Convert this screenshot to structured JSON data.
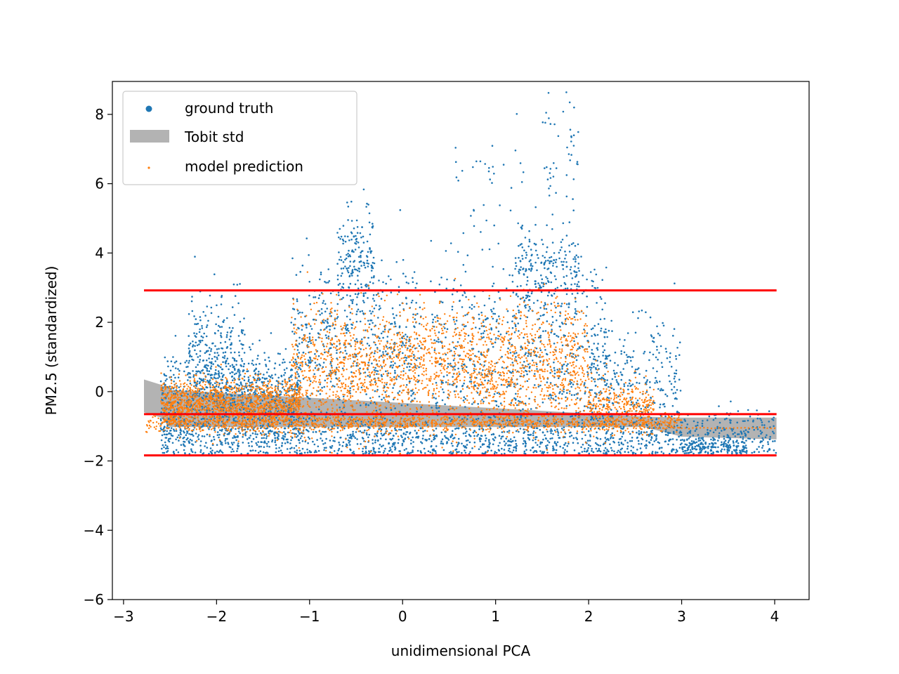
{
  "chart_data": {
    "type": "scatter",
    "title": "",
    "xlabel": "unidimensional PCA",
    "ylabel": "PM2.5 (standardized)",
    "xlim": [
      -3.12,
      4.37
    ],
    "ylim": [
      -6.0,
      8.95
    ],
    "x_ticks": [
      -3,
      -2,
      -1,
      0,
      1,
      2,
      3,
      4
    ],
    "x_tick_labels": [
      "−3",
      "−2",
      "−1",
      "0",
      "1",
      "2",
      "3",
      "4"
    ],
    "y_ticks": [
      -6,
      -4,
      -2,
      0,
      2,
      4,
      6,
      8
    ],
    "y_tick_labels": [
      "−6",
      "−4",
      "−2",
      "0",
      "2",
      "4",
      "6",
      "8"
    ],
    "grid": false,
    "legend_position": "top-left",
    "legend": [
      {
        "label": "ground truth",
        "kind": "marker",
        "color": "#1f77b4"
      },
      {
        "label": "Tobit std",
        "kind": "patch",
        "color": "#b3b3b3"
      },
      {
        "label": "model prediction",
        "kind": "marker",
        "color": "#ff7f0e"
      }
    ],
    "series": [
      {
        "name": "ground truth",
        "color": "#1f77b4",
        "point_count_approx": 9000,
        "x_range": [
          -2.6,
          4.02
        ],
        "clusters": [
          {
            "x": [
              -2.6,
              4.02
            ],
            "y_mean": -1.3,
            "y_sd": 0.35,
            "weight": 0.28
          },
          {
            "x": [
              -2.6,
              -1.1
            ],
            "y_mean": -0.2,
            "y_sd": 0.7,
            "weight": 0.18
          },
          {
            "x": [
              -2.3,
              -1.7
            ],
            "y_mean": 1.0,
            "y_sd": 0.9,
            "weight": 0.05
          },
          {
            "x": [
              -1.2,
              0.2
            ],
            "y_mean": 1.2,
            "y_sd": 1.3,
            "weight": 0.12
          },
          {
            "x": [
              -0.7,
              -0.3
            ],
            "y_mean": 3.8,
            "y_sd": 0.7,
            "weight": 0.03
          },
          {
            "x": [
              0.3,
              2.2
            ],
            "y_mean": 1.0,
            "y_sd": 1.4,
            "weight": 0.14
          },
          {
            "x": [
              1.2,
              1.9
            ],
            "y_mean": 3.5,
            "y_sd": 0.6,
            "weight": 0.04
          },
          {
            "x": [
              1.5,
              1.9
            ],
            "y_mean": 6.5,
            "y_sd": 1.3,
            "weight": 0.01
          },
          {
            "x": [
              0.5,
              1.3
            ],
            "y_mean": 5.8,
            "y_sd": 0.9,
            "weight": 0.007
          },
          {
            "x": [
              2.0,
              3.0
            ],
            "y_mean": 0.2,
            "y_sd": 1.0,
            "weight": 0.06
          },
          {
            "x": [
              3.0,
              3.7
            ],
            "y_mean": -1.6,
            "y_sd": 0.12,
            "weight": 0.03
          }
        ]
      },
      {
        "name": "model prediction",
        "color": "#ff7f0e",
        "point_count_approx": 9000,
        "x_range": [
          -2.78,
          4.02
        ],
        "clusters": [
          {
            "x": [
              -2.78,
              3.0
            ],
            "y_mean": -0.9,
            "y_sd": 0.12,
            "weight": 0.22
          },
          {
            "x": [
              -2.6,
              -1.1
            ],
            "y_mean": -0.35,
            "y_sd": 0.35,
            "weight": 0.25
          },
          {
            "x": [
              -1.2,
              0.2
            ],
            "y_mean": 0.6,
            "y_sd": 0.9,
            "weight": 0.18
          },
          {
            "x": [
              0.2,
              2.0
            ],
            "y_mean": 0.7,
            "y_sd": 0.9,
            "weight": 0.22
          },
          {
            "x": [
              2.0,
              2.7
            ],
            "y_mean": -0.4,
            "y_sd": 0.4,
            "weight": 0.06
          }
        ],
        "floor_line": {
          "x": [
            2.6,
            4.02
          ],
          "y": -1.05
        }
      }
    ],
    "tobit_std_band": {
      "color": "#b3b3b3",
      "x": [
        -2.78,
        -2.6,
        -2.5,
        2.6,
        3.0,
        4.02
      ],
      "y_low": [
        -0.6,
        -0.75,
        -1.02,
        -1.02,
        -1.3,
        -1.38
      ],
      "y_high": [
        0.35,
        0.2,
        0.05,
        -0.72,
        -0.75,
        -0.75
      ]
    },
    "reference_lines": [
      {
        "y": 2.92,
        "x": [
          -2.78,
          4.02
        ],
        "color": "#ff0000"
      },
      {
        "y": -0.65,
        "x": [
          -2.78,
          4.02
        ],
        "color": "#ff0000"
      },
      {
        "y": -1.84,
        "x": [
          -2.78,
          4.02
        ],
        "color": "#ff0000"
      }
    ]
  }
}
